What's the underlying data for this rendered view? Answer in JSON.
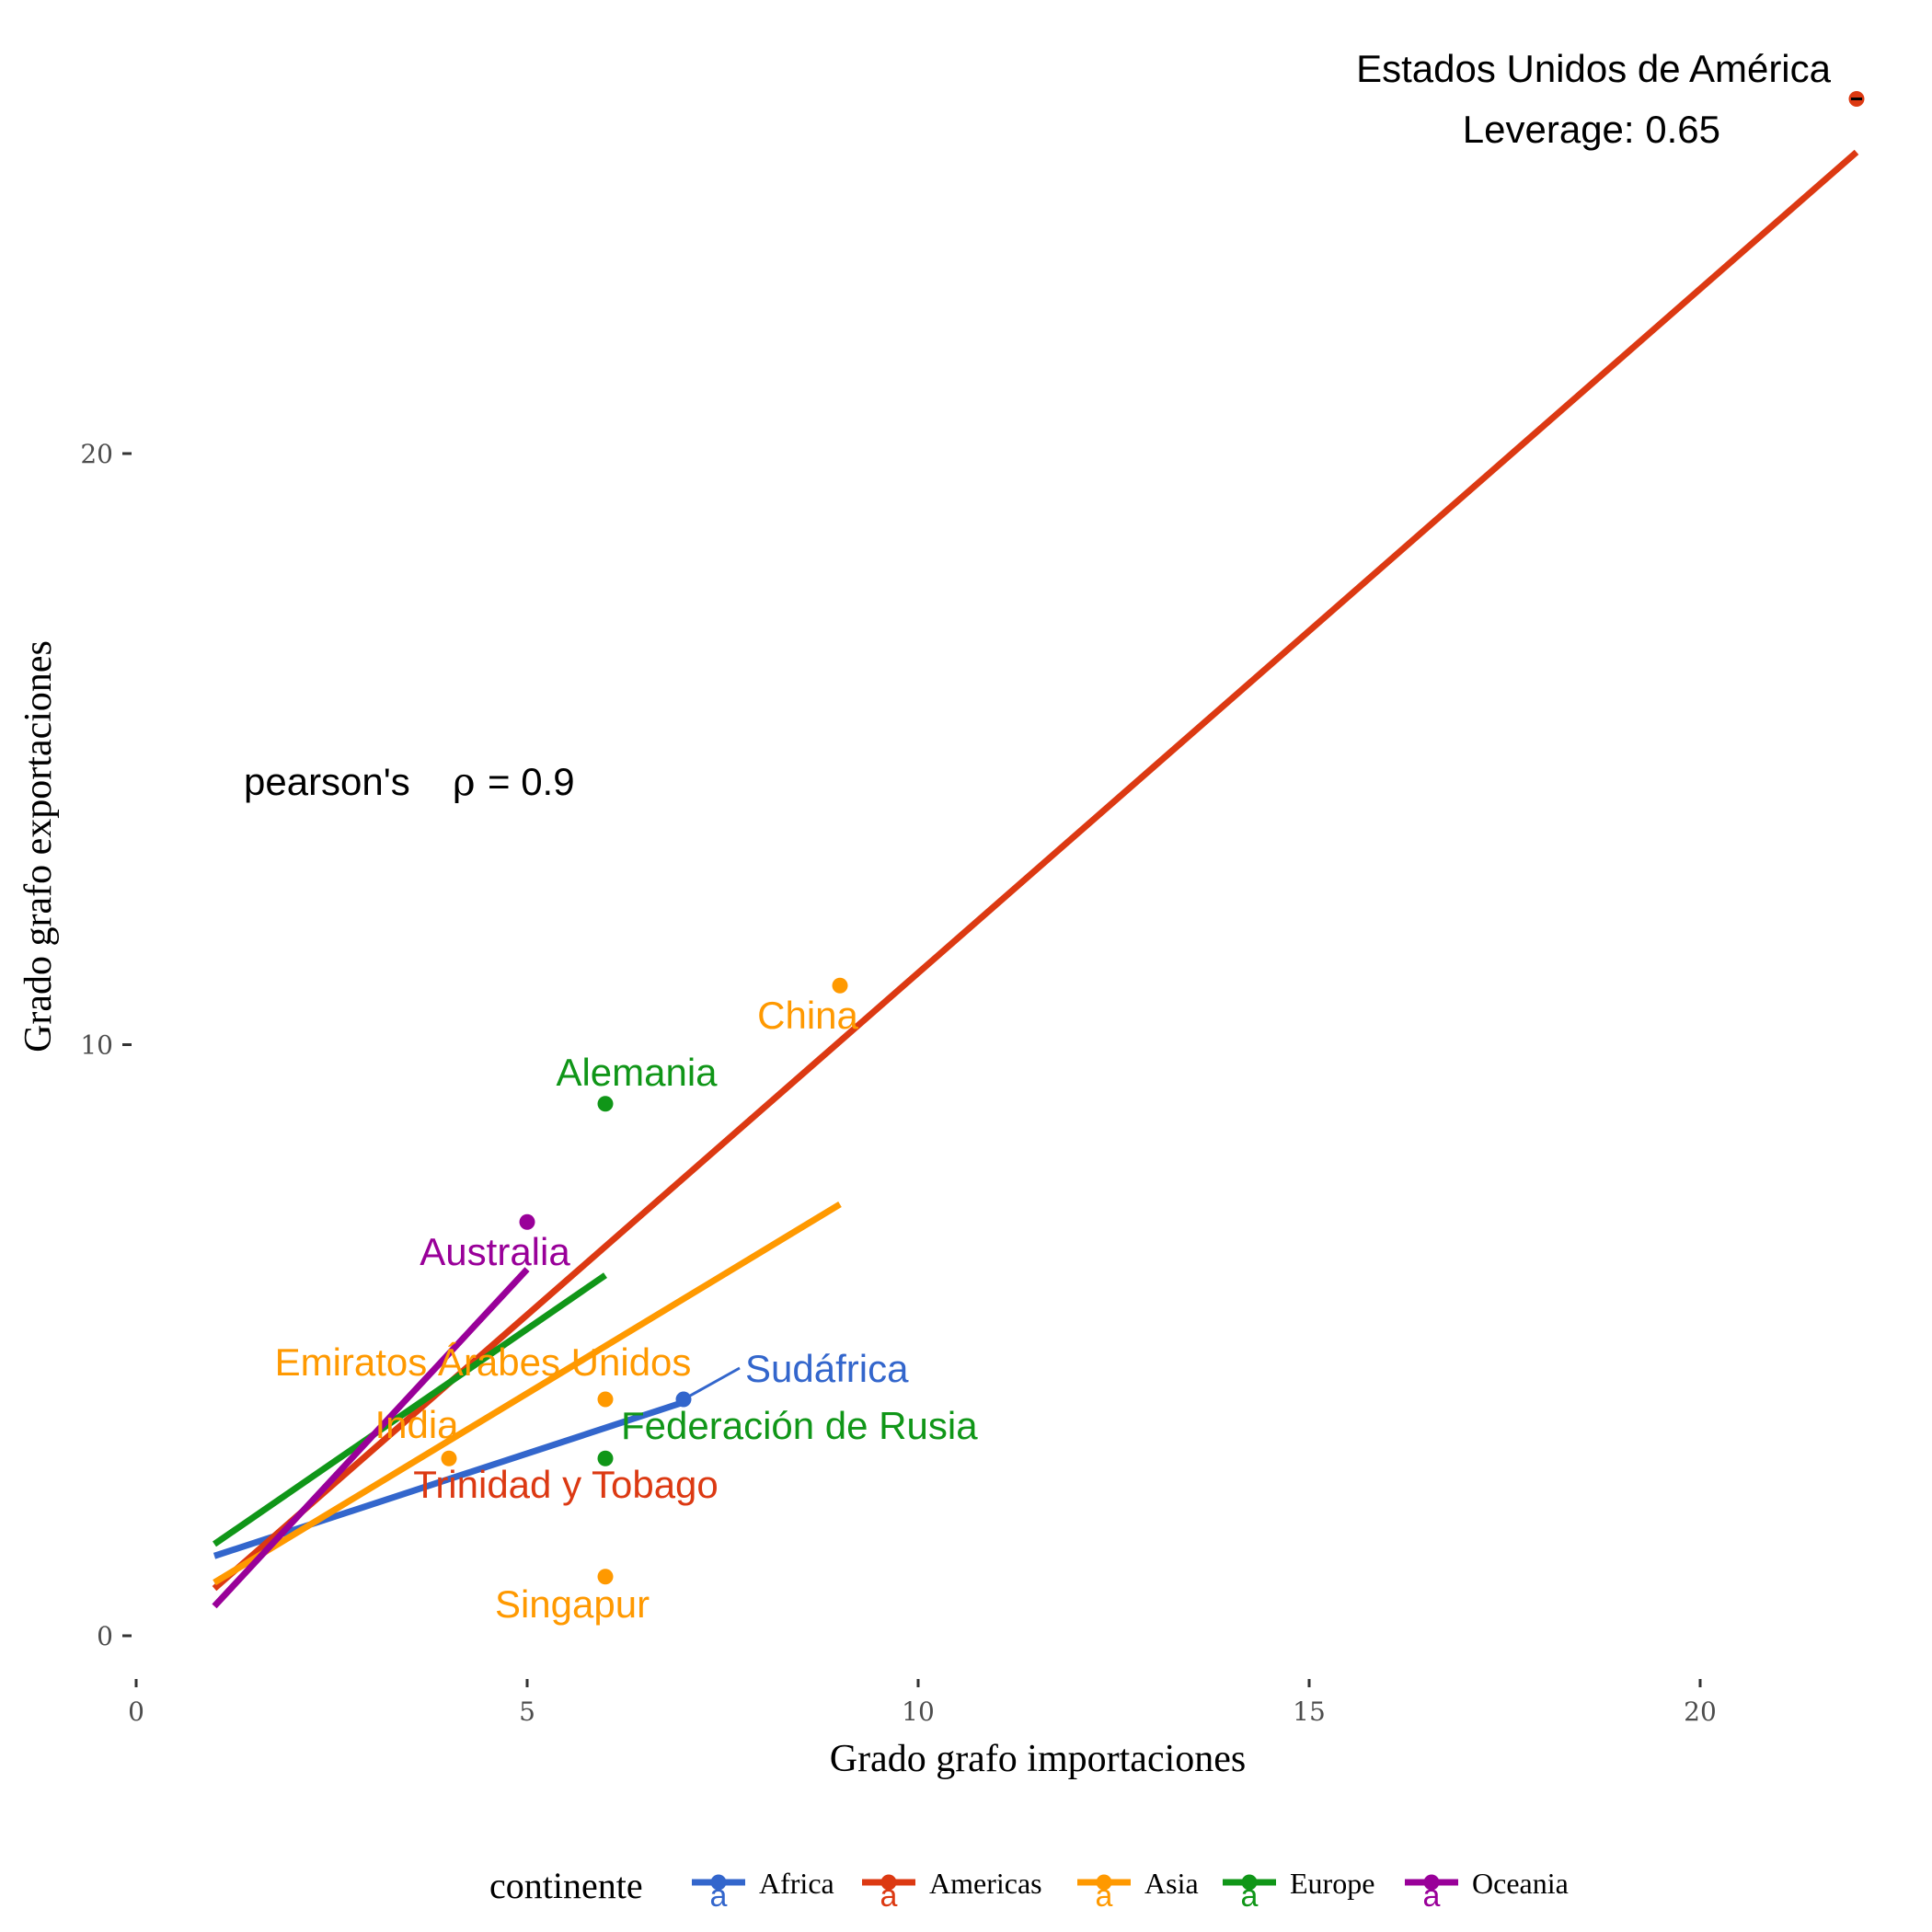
{
  "chart_data": {
    "type": "scatter",
    "xlabel": "Grado grafo importaciones",
    "ylabel": "Grado grafo exportaciones",
    "xlim": [
      0,
      22
    ],
    "ylim": [
      -0.7,
      26.5
    ],
    "x_ticks": [
      "0",
      "5",
      "10",
      "15",
      "20"
    ],
    "y_ticks": [
      "0",
      "10",
      "20"
    ],
    "grid": false,
    "legend": {
      "title": "continente",
      "placement": "bottom",
      "items": [
        {
          "label": "Africa",
          "color": "#3366cc"
        },
        {
          "label": "Americas",
          "color": "#dc3912"
        },
        {
          "label": "Asia",
          "color": "#ff9900"
        },
        {
          "label": "Europe",
          "color": "#109618"
        },
        {
          "label": "Oceania",
          "color": "#990099"
        }
      ]
    },
    "points": [
      {
        "x": 22,
        "y": 26,
        "continent": "Americas",
        "label": ""
      },
      {
        "x": 9,
        "y": 11,
        "continent": "Asia",
        "label": "China"
      },
      {
        "x": 6,
        "y": 9,
        "continent": "Europe",
        "label": "Alemania"
      },
      {
        "x": 5,
        "y": 7,
        "continent": "Oceania",
        "label": "Australia"
      },
      {
        "x": 6,
        "y": 4,
        "continent": "Asia",
        "label": "Emiratos Árabes Unidos"
      },
      {
        "x": 7,
        "y": 4,
        "continent": "Africa",
        "label": "Sudáfrica"
      },
      {
        "x": 4,
        "y": 3,
        "continent": "Asia",
        "label": "India"
      },
      {
        "x": 6,
        "y": 3,
        "continent": "Europe",
        "label": "Federación de Rusia"
      },
      {
        "x": 6,
        "y": 1,
        "continent": "Asia",
        "label": "Singapur"
      }
    ],
    "extra_labels": [
      {
        "text": "Trinidad y Tobago",
        "continent": "Americas"
      }
    ],
    "regression_lines": [
      {
        "continent": "Africa",
        "x": [
          1,
          7
        ],
        "y": [
          1.35,
          3.95
        ]
      },
      {
        "continent": "Americas",
        "x": [
          1,
          22
        ],
        "y": [
          0.8,
          25.1
        ]
      },
      {
        "continent": "Asia",
        "x": [
          1,
          9
        ],
        "y": [
          0.9,
          7.3
        ]
      },
      {
        "continent": "Europe",
        "x": [
          1,
          6
        ],
        "y": [
          1.55,
          6.1
        ]
      },
      {
        "continent": "Oceania",
        "x": [
          1,
          5
        ],
        "y": [
          0.5,
          6.2
        ]
      }
    ],
    "annotations": {
      "highlight_name": "Estados Unidos de América",
      "leverage": "Leverage: 0.65",
      "correlation_prefix": "pearson's",
      "correlation_symbol": "ρ",
      "correlation_value": "= 0.9"
    }
  }
}
